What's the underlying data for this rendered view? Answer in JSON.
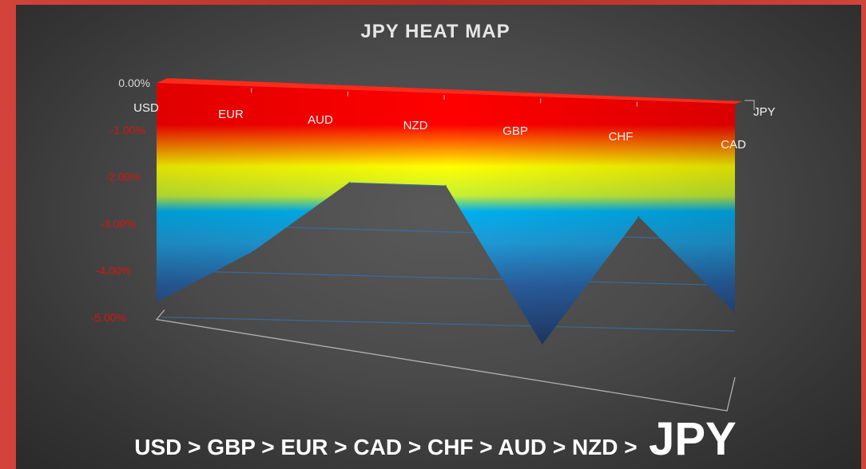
{
  "chart_data": {
    "type": "area",
    "title": "JPY HEAT MAP",
    "categories": [
      "USD",
      "EUR",
      "AUD",
      "NZD",
      "GBP",
      "CHF",
      "CAD"
    ],
    "values": [
      -4.7,
      -3.55,
      -2.0,
      -2.0,
      -5.4,
      -2.55,
      -4.6
    ],
    "yticks": [
      "0.00%",
      "-1.00%",
      "-2.00%",
      "-3.00%",
      "-4.00%",
      "-5.00%"
    ],
    "ylim": [
      -5,
      0
    ],
    "depth_label": "JPY",
    "grid": true,
    "colors": {
      "top": "#ff0000",
      "yellow": "#ffff00",
      "cyan": "#00b0f0",
      "navy": "#1f3864"
    }
  },
  "ranking": {
    "sequence": "USD > GBP > EUR > CAD > CHF > AUD > NZD >",
    "currency": "JPY"
  }
}
